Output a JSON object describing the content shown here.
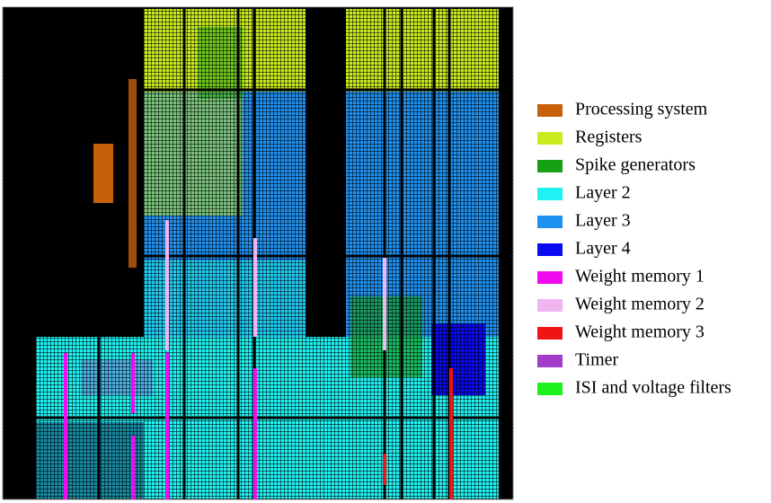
{
  "legend": {
    "items": [
      {
        "label": "Processing system",
        "color": "#c8600a"
      },
      {
        "label": "Registers",
        "color": "#c8ec1e"
      },
      {
        "label": "Spike generators",
        "color": "#16a016"
      },
      {
        "label": "Layer 2",
        "color": "#1ef2f2"
      },
      {
        "label": "Layer 3",
        "color": "#1e90f0"
      },
      {
        "label": "Layer 4",
        "color": "#0a0af0"
      },
      {
        "label": "Weight memory 1",
        "color": "#f00af0"
      },
      {
        "label": "Weight memory 2",
        "color": "#f0b4f0"
      },
      {
        "label": "Weight memory 3",
        "color": "#f01414"
      },
      {
        "label": "Timer",
        "color": "#a03cc8"
      },
      {
        "label": "ISI and voltage filters",
        "color": "#1ef01e"
      }
    ]
  }
}
